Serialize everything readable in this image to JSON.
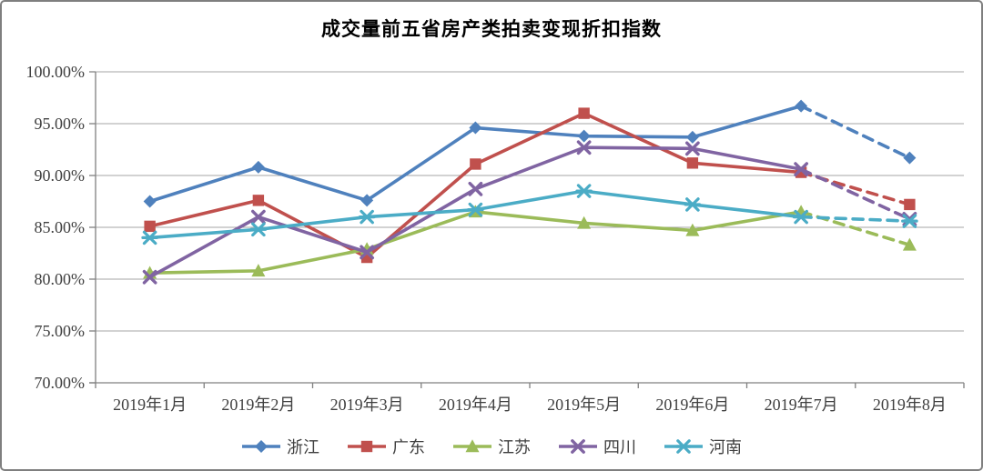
{
  "chart_data": {
    "type": "line",
    "title": "成交量前五省房产类拍卖变现折扣指数",
    "categories": [
      "2019年1月",
      "2019年2月",
      "2019年3月",
      "2019年4月",
      "2019年5月",
      "2019年6月",
      "2019年7月",
      "2019年8月"
    ],
    "series": [
      {
        "name": "浙江",
        "color": "#4F81BD",
        "marker": "diamond",
        "values": [
          87.5,
          90.8,
          87.6,
          94.6,
          93.8,
          93.7,
          96.7,
          91.7
        ]
      },
      {
        "name": "广东",
        "color": "#C0504D",
        "marker": "square",
        "values": [
          85.1,
          87.6,
          82.1,
          91.1,
          96.0,
          91.2,
          90.3,
          87.2
        ]
      },
      {
        "name": "江苏",
        "color": "#9BBB59",
        "marker": "triangle",
        "values": [
          80.6,
          80.8,
          82.9,
          86.5,
          85.4,
          84.7,
          86.5,
          83.3
        ]
      },
      {
        "name": "四川",
        "color": "#8064A2",
        "marker": "x",
        "values": [
          80.2,
          86.0,
          82.6,
          88.7,
          92.7,
          92.6,
          90.6,
          85.8
        ]
      },
      {
        "name": "河南",
        "color": "#4BACC6",
        "marker": "asterisk",
        "values": [
          84.0,
          84.8,
          86.0,
          86.7,
          88.5,
          87.2,
          86.0,
          85.6
        ]
      }
    ],
    "xlabel": "",
    "ylabel": "",
    "ylim": [
      70,
      100
    ],
    "ytick_step": 5,
    "ytick_labels": [
      "70.00%",
      "75.00%",
      "80.00%",
      "85.00%",
      "90.00%",
      "95.00%",
      "100.00%"
    ],
    "grid": "horizontal",
    "legend_position": "bottom",
    "dashed_from_index": 6,
    "colors": {
      "axis": "#808080",
      "grid": "#A6A6A6",
      "tick_label": "#404040",
      "title": "#000000",
      "frame_border": "#7f7f7f",
      "background": "#ffffff"
    }
  }
}
